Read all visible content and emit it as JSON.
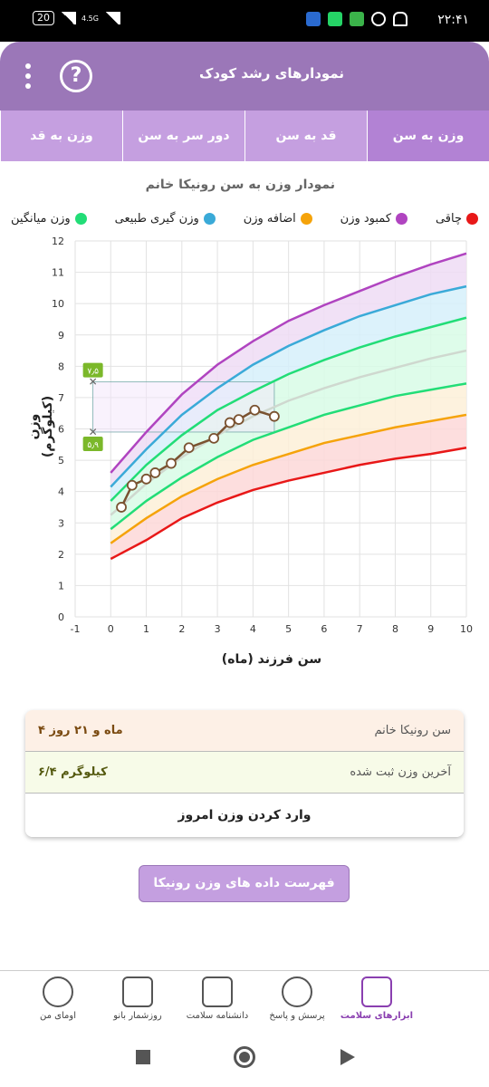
{
  "status": {
    "time": "۲۲:۴۱",
    "battery": "20",
    "network": "4.5G"
  },
  "appbar": {
    "title": "نمودارهای رشد کودک"
  },
  "tabs": [
    "وزن به سن",
    "قد به سن",
    "دور سر به سن",
    "وزن به قد"
  ],
  "chart_title": "نمودار وزن به سن رونیکا خانم",
  "legend": [
    {
      "label": "چاقی",
      "color": "#b044c0"
    },
    {
      "label": "کمبود وزن",
      "color": "#f5a30a"
    },
    {
      "label": "اضافه وزن",
      "color": "#3aaad8"
    },
    {
      "label": "وزن گیری طبیعی",
      "color": "#22dd77"
    },
    {
      "label": "وزن میانگین",
      "color": "#d8d8d8"
    }
  ],
  "chart_data": {
    "type": "line",
    "title": "نمودار وزن به سن رونیکا خانم",
    "xlabel": "سن فرزند (ماه)",
    "ylabel": "وزن (کیلوگرم)",
    "xlim": [
      -1,
      10
    ],
    "ylim": [
      0,
      12
    ],
    "x_ticks": [
      -1,
      0,
      1,
      2,
      3,
      4,
      5,
      6,
      7,
      8,
      9,
      10
    ],
    "y_ticks": [
      0,
      1,
      2,
      3,
      4,
      5,
      6,
      7,
      8,
      9,
      10,
      11,
      12
    ],
    "x": [
      0,
      1,
      2,
      3,
      4,
      5,
      6,
      7,
      8,
      9,
      10
    ],
    "curves": [
      {
        "name": "obese",
        "color": "#b044c0",
        "values": [
          4.6,
          5.9,
          7.1,
          8.05,
          8.8,
          9.45,
          9.95,
          10.4,
          10.85,
          11.25,
          11.6
        ]
      },
      {
        "name": "overweight",
        "color": "#3aaad8",
        "values": [
          4.15,
          5.35,
          6.45,
          7.3,
          8.05,
          8.65,
          9.15,
          9.6,
          9.95,
          10.3,
          10.55
        ]
      },
      {
        "name": "normal-high",
        "color": "#22dd77",
        "values": [
          3.7,
          4.85,
          5.8,
          6.6,
          7.2,
          7.75,
          8.2,
          8.6,
          8.95,
          9.25,
          9.55
        ]
      },
      {
        "name": "median",
        "color": "#cfd8cf",
        "values": [
          3.25,
          4.25,
          5.1,
          5.8,
          6.4,
          6.9,
          7.3,
          7.65,
          7.95,
          8.25,
          8.5
        ]
      },
      {
        "name": "normal-low",
        "color": "#22dd77",
        "values": [
          2.8,
          3.7,
          4.45,
          5.1,
          5.65,
          6.05,
          6.45,
          6.75,
          7.05,
          7.25,
          7.45
        ]
      },
      {
        "name": "underweight",
        "color": "#f5a30a",
        "values": [
          2.35,
          3.15,
          3.85,
          4.4,
          4.85,
          5.2,
          5.55,
          5.8,
          6.05,
          6.25,
          6.45
        ]
      },
      {
        "name": "severe",
        "color": "#e81818",
        "values": [
          1.85,
          2.45,
          3.15,
          3.65,
          4.05,
          4.35,
          4.6,
          4.85,
          5.05,
          5.2,
          5.4
        ]
      }
    ],
    "bands": [
      {
        "from": "obese",
        "to": "overweight",
        "fill": "#efdcf5"
      },
      {
        "from": "overweight",
        "to": "normal-high",
        "fill": "#d6f0fa"
      },
      {
        "from": "normal-high",
        "to": "normal-low",
        "fill": "#d8fbe6"
      },
      {
        "from": "normal-low",
        "to": "underweight",
        "fill": "#fdf0d8"
      },
      {
        "from": "underweight",
        "to": "severe",
        "fill": "#fdd8d8"
      }
    ],
    "series": [
      {
        "name": "",
        "color": "#7a5230",
        "points": [
          [
            0.3,
            3.5
          ],
          [
            0.6,
            4.2
          ],
          [
            1.0,
            4.4
          ],
          [
            1.25,
            4.6
          ],
          [
            1.7,
            4.9
          ],
          [
            2.2,
            5.4
          ],
          [
            2.9,
            5.7
          ],
          [
            3.35,
            6.2
          ],
          [
            3.6,
            6.3
          ],
          [
            4.05,
            6.6
          ],
          [
            4.6,
            6.4
          ]
        ]
      }
    ],
    "range_markers": {
      "upper": 7.5,
      "lower": 5.9,
      "upper_label": "۷٫۵",
      "lower_label": "۵٫۹",
      "box_x_end": 4.6,
      "marker_x": -0.5
    }
  },
  "info": {
    "age_label": "سن رونیکا خانم",
    "age_value": "۴ ماه و ۲۱ روز",
    "weight_label": "آخرین وزن ثبت شده",
    "weight_value": "۶/۴ کیلوگرم",
    "add_weight": "وارد کردن وزن امروز"
  },
  "list_button": "فهرست داده های وزن رونیکا خانم",
  "nav": [
    {
      "label": "ابزارهای سلامت",
      "icon": "health-kit-icon"
    },
    {
      "label": "پرسش و پاسخ",
      "icon": "question-bubble-icon"
    },
    {
      "label": "دانشنامه سلامت",
      "icon": "newspaper-icon"
    },
    {
      "label": "روزشمار بانو",
      "icon": "calendar-icon"
    },
    {
      "label": "اومای من",
      "icon": "profile-icon"
    }
  ]
}
